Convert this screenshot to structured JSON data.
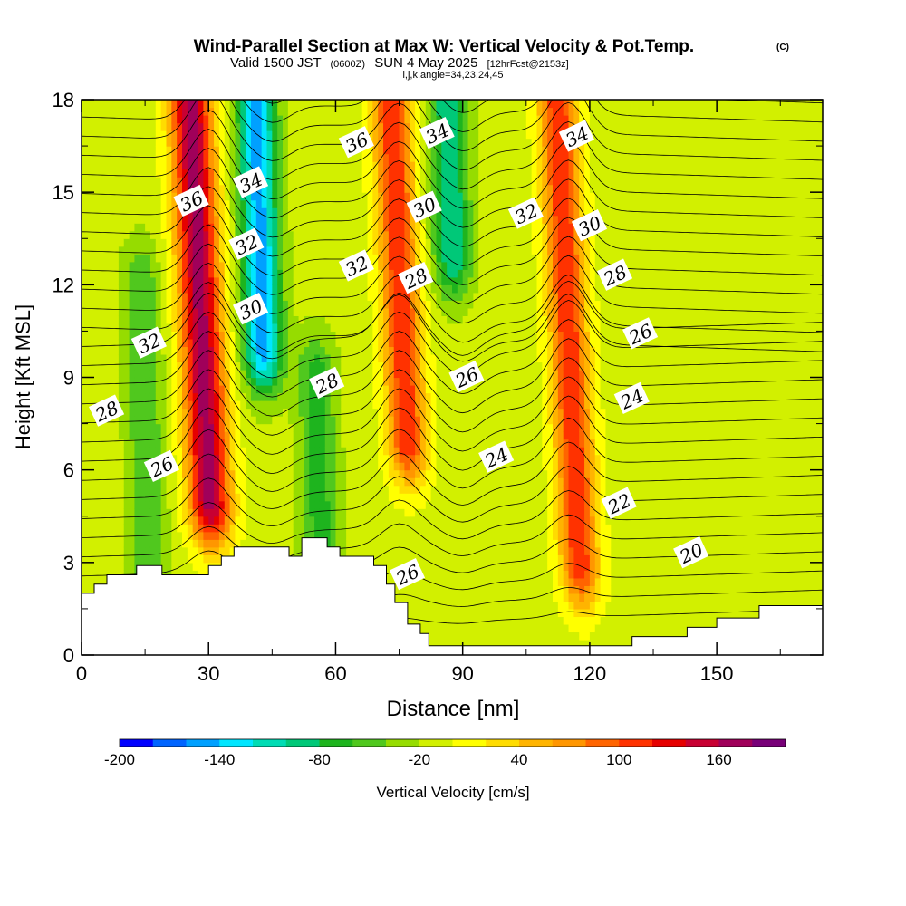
{
  "chart_data": {
    "type": "heatmap",
    "title": "Wind-Parallel Section at Max W: Vertical Velocity & Pot.Temp.",
    "title_mark": "(C)",
    "subtitle": {
      "valid": "Valid 1500 JST",
      "utc": "(0600Z)",
      "date": "SUN 4 May 2025",
      "forecast": "[12hrFcst@2153z]"
    },
    "subsubtitle": "i,j,k,angle=34,23,24,45",
    "xlabel": "Distance [nm]",
    "ylabel": "Height [Kft MSL]",
    "xlim": [
      0,
      175
    ],
    "ylim": [
      0,
      18
    ],
    "xticks": [
      0,
      30,
      60,
      90,
      120,
      150
    ],
    "yticks": [
      0,
      3,
      6,
      9,
      12,
      15,
      18
    ],
    "colorbar": {
      "label": "Vertical Velocity [cm/s]",
      "range": [
        -200,
        200
      ],
      "tick_values": [
        -200,
        -140,
        -80,
        -20,
        40,
        100,
        160
      ],
      "colors": [
        "#0000ff",
        "#0064ff",
        "#00a0ff",
        "#00e6ff",
        "#00dcb4",
        "#00c878",
        "#1eb41e",
        "#50c81e",
        "#96dc00",
        "#d2f000",
        "#ffff00",
        "#ffdc00",
        "#ffb400",
        "#ff9600",
        "#ff6400",
        "#ff3200",
        "#e60000",
        "#c80032",
        "#a0005a",
        "#780078"
      ]
    },
    "updraft_cores": [
      {
        "x_nm": 28,
        "ztop_kft": 18,
        "zbot_kft": 5,
        "peak_cms": 180
      },
      {
        "x_nm": 75,
        "ztop_kft": 18,
        "zbot_kft": 7,
        "peak_cms": 130
      },
      {
        "x_nm": 115,
        "ztop_kft": 18,
        "zbot_kft": 3,
        "peak_cms": 130
      }
    ],
    "downdraft_cores": [
      {
        "x_nm": 42,
        "ztop_kft": 18,
        "zbot_kft": 10,
        "peak_cms": -140
      },
      {
        "x_nm": 87,
        "ztop_kft": 18,
        "zbot_kft": 13,
        "peak_cms": -90
      },
      {
        "x_nm": 56,
        "ztop_kft": 9,
        "zbot_kft": 3,
        "peak_cms": -60
      },
      {
        "x_nm": 15,
        "ztop_kft": 12,
        "zbot_kft": 3,
        "peak_cms": -50
      }
    ],
    "theta_contours": {
      "units": "C",
      "labeled_values": [
        20,
        22,
        24,
        26,
        28,
        30,
        32,
        34,
        36
      ]
    },
    "contour_labels": [
      {
        "text": "36",
        "x": 26,
        "z": 14.7
      },
      {
        "text": "34",
        "x": 40,
        "z": 15.3
      },
      {
        "text": "32",
        "x": 39,
        "z": 13.3
      },
      {
        "text": "30",
        "x": 40,
        "z": 11.2
      },
      {
        "text": "32",
        "x": 16,
        "z": 10.1
      },
      {
        "text": "28",
        "x": 6,
        "z": 7.9
      },
      {
        "text": "26",
        "x": 19,
        "z": 6.1
      },
      {
        "text": "28",
        "x": 58,
        "z": 8.8
      },
      {
        "text": "36",
        "x": 65,
        "z": 16.6
      },
      {
        "text": "32",
        "x": 65,
        "z": 12.6
      },
      {
        "text": "34",
        "x": 84,
        "z": 16.9
      },
      {
        "text": "30",
        "x": 81,
        "z": 14.5
      },
      {
        "text": "28",
        "x": 79,
        "z": 12.2
      },
      {
        "text": "26",
        "x": 91,
        "z": 9.0
      },
      {
        "text": "24",
        "x": 98,
        "z": 6.4
      },
      {
        "text": "26",
        "x": 77,
        "z": 2.6
      },
      {
        "text": "32",
        "x": 105,
        "z": 14.3
      },
      {
        "text": "34",
        "x": 117,
        "z": 16.8
      },
      {
        "text": "30",
        "x": 120,
        "z": 13.9
      },
      {
        "text": "28",
        "x": 126,
        "z": 12.3
      },
      {
        "text": "26",
        "x": 132,
        "z": 10.4
      },
      {
        "text": "24",
        "x": 130,
        "z": 8.3
      },
      {
        "text": "22",
        "x": 127,
        "z": 4.9
      },
      {
        "text": "20",
        "x": 144,
        "z": 3.3
      }
    ],
    "terrain": [
      [
        0,
        2
      ],
      [
        3,
        2
      ],
      [
        3,
        2.3
      ],
      [
        6,
        2.3
      ],
      [
        6,
        2.6
      ],
      [
        13,
        2.6
      ],
      [
        13,
        2.9
      ],
      [
        19,
        2.9
      ],
      [
        19,
        2.6
      ],
      [
        30,
        2.6
      ],
      [
        30,
        2.9
      ],
      [
        33,
        2.9
      ],
      [
        33,
        3.2
      ],
      [
        36,
        3.2
      ],
      [
        36,
        3.5
      ],
      [
        49,
        3.5
      ],
      [
        49,
        3.2
      ],
      [
        52,
        3.2
      ],
      [
        52,
        3.8
      ],
      [
        58,
        3.8
      ],
      [
        58,
        3.5
      ],
      [
        61,
        3.5
      ],
      [
        61,
        3.2
      ],
      [
        69,
        3.2
      ],
      [
        69,
        2.9
      ],
      [
        72,
        2.9
      ],
      [
        72,
        2.3
      ],
      [
        74,
        2.3
      ],
      [
        74,
        1.7
      ],
      [
        77,
        1.7
      ],
      [
        77,
        1.0
      ],
      [
        80,
        1.0
      ],
      [
        80,
        0.7
      ],
      [
        82,
        0.7
      ],
      [
        82,
        0.3
      ],
      [
        130,
        0.3
      ],
      [
        130,
        0.6
      ],
      [
        143,
        0.6
      ],
      [
        143,
        0.9
      ],
      [
        150,
        0.9
      ],
      [
        150,
        1.2
      ],
      [
        160,
        1.2
      ],
      [
        160,
        1.6
      ],
      [
        175,
        1.6
      ]
    ]
  }
}
